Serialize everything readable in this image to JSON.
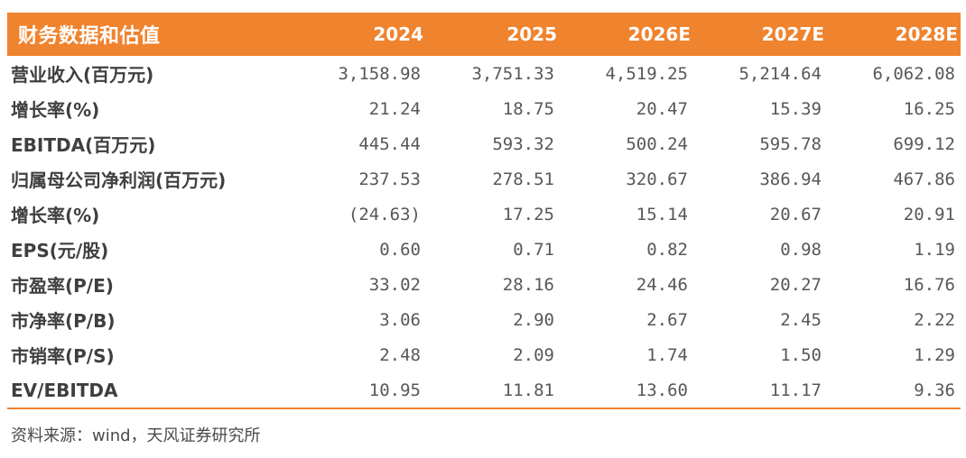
{
  "theme": {
    "accent_orange": "#F0832E",
    "header_text_color": "#FFFFFF",
    "label_text_color": "#3F3F3F",
    "value_text_color": "#595757"
  },
  "table": {
    "title": "财务数据和估值",
    "columns": [
      "2024",
      "2025",
      "2026E",
      "2027E",
      "2028E"
    ],
    "rows": [
      {
        "label": "营业收入(百万元)",
        "values": [
          "3,158.98",
          "3,751.33",
          "4,519.25",
          "5,214.64",
          "6,062.08"
        ]
      },
      {
        "label": "增长率(%)",
        "values": [
          "21.24",
          "18.75",
          "20.47",
          "15.39",
          "16.25"
        ]
      },
      {
        "label": "EBITDA(百万元)",
        "values": [
          "445.44",
          "593.32",
          "500.24",
          "595.78",
          "699.12"
        ]
      },
      {
        "label": "归属母公司净利润(百万元)",
        "values": [
          "237.53",
          "278.51",
          "320.67",
          "386.94",
          "467.86"
        ]
      },
      {
        "label": "增长率(%)",
        "values": [
          "(24.63)",
          "17.25",
          "15.14",
          "20.67",
          "20.91"
        ]
      },
      {
        "label": "EPS(元/股)",
        "values": [
          "0.60",
          "0.71",
          "0.82",
          "0.98",
          "1.19"
        ]
      },
      {
        "label": "市盈率(P/E)",
        "values": [
          "33.02",
          "28.16",
          "24.46",
          "20.27",
          "16.76"
        ]
      },
      {
        "label": "市净率(P/B)",
        "values": [
          "3.06",
          "2.90",
          "2.67",
          "2.45",
          "2.22"
        ]
      },
      {
        "label": "市销率(P/S)",
        "values": [
          "2.48",
          "2.09",
          "1.74",
          "1.50",
          "1.29"
        ]
      },
      {
        "label": "EV/EBITDA",
        "values": [
          "10.95",
          "11.81",
          "13.60",
          "11.17",
          "9.36"
        ]
      }
    ],
    "source_note": "资料来源：wind，天风证券研究所"
  }
}
